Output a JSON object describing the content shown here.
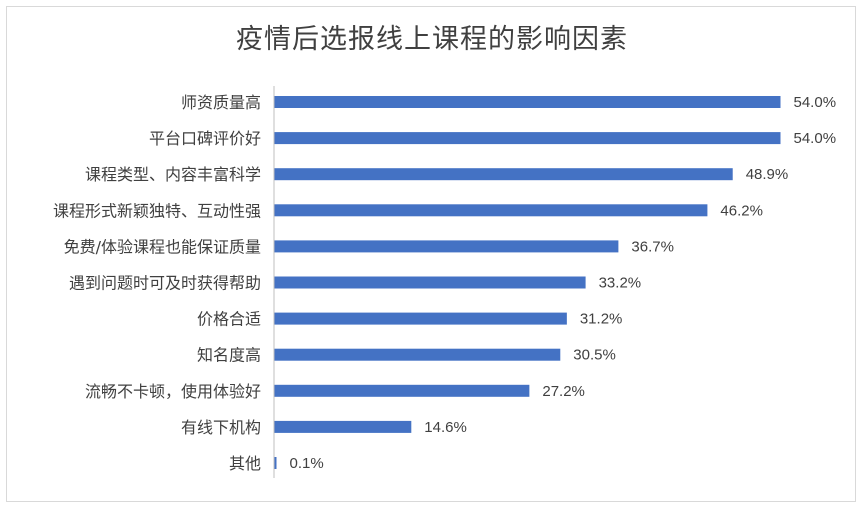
{
  "chart_data": {
    "type": "bar",
    "orientation": "horizontal",
    "title": "疫情后选报线上课程的影响因素",
    "categories": [
      "师资质量高",
      "平台口碑评价好",
      "课程类型、内容丰富科学",
      "课程形式新颖独特、互动性强",
      "免费/体验课程也能保证质量",
      "遇到问题时可及时获得帮助",
      "价格合适",
      "知名度高",
      "流畅不卡顿，使用体验好",
      "有线下机构",
      "其他"
    ],
    "values": [
      54.0,
      54.0,
      48.9,
      46.2,
      36.7,
      33.2,
      31.2,
      30.5,
      27.2,
      14.6,
      0.1
    ],
    "value_labels": [
      "54.0%",
      "54.0%",
      "48.9%",
      "46.2%",
      "36.7%",
      "33.2%",
      "31.2%",
      "30.5%",
      "27.2%",
      "14.6%",
      "0.1%"
    ],
    "xlim": [
      0,
      54.0
    ],
    "grid": false,
    "legend": "none",
    "bar_color": "#4472c4",
    "axis_color": "#bfbfbf",
    "text_color": "#404040"
  }
}
